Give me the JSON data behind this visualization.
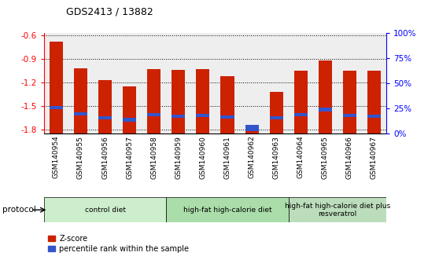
{
  "title": "GDS2413 / 13882",
  "samples": [
    "GSM140954",
    "GSM140955",
    "GSM140956",
    "GSM140957",
    "GSM140958",
    "GSM140959",
    "GSM140960",
    "GSM140961",
    "GSM140962",
    "GSM140963",
    "GSM140964",
    "GSM140965",
    "GSM140966",
    "GSM140967"
  ],
  "zscore": [
    -0.68,
    -1.02,
    -1.17,
    -1.25,
    -1.03,
    -1.04,
    -1.03,
    -1.12,
    -1.78,
    -1.32,
    -1.05,
    -0.92,
    -1.05,
    -1.05
  ],
  "percentile_bottom": [
    -1.54,
    -1.62,
    -1.67,
    -1.7,
    -1.63,
    -1.65,
    -1.64,
    -1.66,
    -1.82,
    -1.67,
    -1.63,
    -1.57,
    -1.64,
    -1.65
  ],
  "percentile_top": [
    -1.5,
    -1.58,
    -1.63,
    -1.65,
    -1.59,
    -1.61,
    -1.6,
    -1.62,
    -1.74,
    -1.63,
    -1.59,
    -1.52,
    -1.6,
    -1.61
  ],
  "ylim_min": -1.85,
  "ylim_max": -0.57,
  "yticks_left": [
    -0.6,
    -0.9,
    -1.2,
    -1.5,
    -1.8
  ],
  "yticks_right": [
    0,
    25,
    50,
    75,
    100
  ],
  "bar_color": "#cc2200",
  "blue_color": "#3355cc",
  "groups": [
    {
      "label": "control diet",
      "start": 0,
      "end": 4,
      "color": "#cceecc"
    },
    {
      "label": "high-fat high-calorie diet",
      "start": 5,
      "end": 9,
      "color": "#aaddaa"
    },
    {
      "label": "high-fat high-calorie diet plus\nresveratrol",
      "start": 10,
      "end": 13,
      "color": "#bbddbb"
    }
  ],
  "protocol_label": "protocol",
  "legend_zscore": "Z-score",
  "legend_percentile": "percentile rank within the sample",
  "bar_width": 0.55
}
